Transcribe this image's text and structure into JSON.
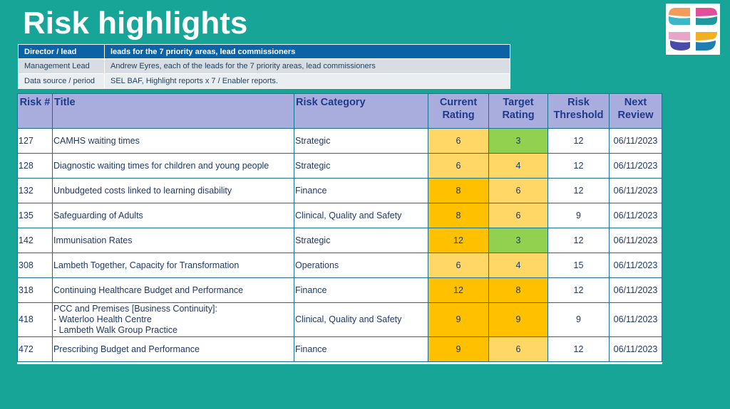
{
  "slide": {
    "title": "Risk highlights"
  },
  "logo": {
    "description_icon": "nhs-lambeth-cross-logo",
    "colors": [
      "#e8a5c8",
      "#3bb7c8",
      "#e0509a",
      "#4b4aa8",
      "#f2b01e",
      "#1d7fb0",
      "#f29c5c",
      "#5b9bd5"
    ]
  },
  "meta": {
    "rows": [
      {
        "label": "Director / lead",
        "value": "leads for the 7 priority areas, lead commissioners"
      },
      {
        "label": "Management Lead",
        "value": "Andrew Eyres, each of the leads for the 7 priority areas, lead commissioners"
      },
      {
        "label": "Data source / period",
        "value": "SEL BAF, Highlight reports x 7 / Enabler reports."
      }
    ]
  },
  "risk_table": {
    "headers": {
      "risk_num": "Risk #",
      "title": "Title",
      "category": "Risk Category",
      "current": "Current Rating",
      "target": "Target Rating",
      "threshold": "Risk Threshold",
      "review": "Next Review"
    },
    "rows": [
      {
        "num": "127",
        "title": "CAMHS waiting times",
        "category": "Strategic",
        "current": "6",
        "target": "3",
        "threshold": "12",
        "review": "06/11/2023"
      },
      {
        "num": "128",
        "title": "Diagnostic waiting times for children and young people",
        "category": "Strategic",
        "current": "6",
        "target": "4",
        "threshold": "12",
        "review": "06/11/2023"
      },
      {
        "num": "132",
        "title": "Unbudgeted costs linked to learning disability",
        "category": "Finance",
        "current": "8",
        "target": "6",
        "threshold": "12",
        "review": "06/11/2023"
      },
      {
        "num": "135",
        "title": "Safeguarding of Adults",
        "category": "Clinical, Quality and Safety",
        "current": "8",
        "target": "6",
        "threshold": "9",
        "review": "06/11/2023"
      },
      {
        "num": "142",
        "title": "Immunisation Rates",
        "category": "Strategic",
        "current": "12",
        "target": "3",
        "threshold": "12",
        "review": "06/11/2023"
      },
      {
        "num": "308",
        "title": "Lambeth Together,  Capacity for Transformation",
        "category": "Operations",
        "current": "6",
        "target": "4",
        "threshold": "15",
        "review": "06/11/2023"
      },
      {
        "num": "318",
        "title": "Continuing Healthcare Budget and Performance",
        "category": "Finance",
        "current": "12",
        "target": "8",
        "threshold": "12",
        "review": "06/11/2023"
      },
      {
        "num": "418",
        "title_lines": [
          "PCC and Premises [Business Continuity]:",
          "- Waterloo Health Centre",
          "- Lambeth Walk Group Practice"
        ],
        "category": "Clinical, Quality and Safety",
        "current": "9",
        "target": "9",
        "threshold": "9",
        "review": "06/11/2023"
      },
      {
        "num": "472",
        "title": "Prescribing Budget and Performance",
        "category": "Finance",
        "current": "9",
        "target": "6",
        "threshold": "12",
        "review": "06/11/2023"
      }
    ]
  }
}
